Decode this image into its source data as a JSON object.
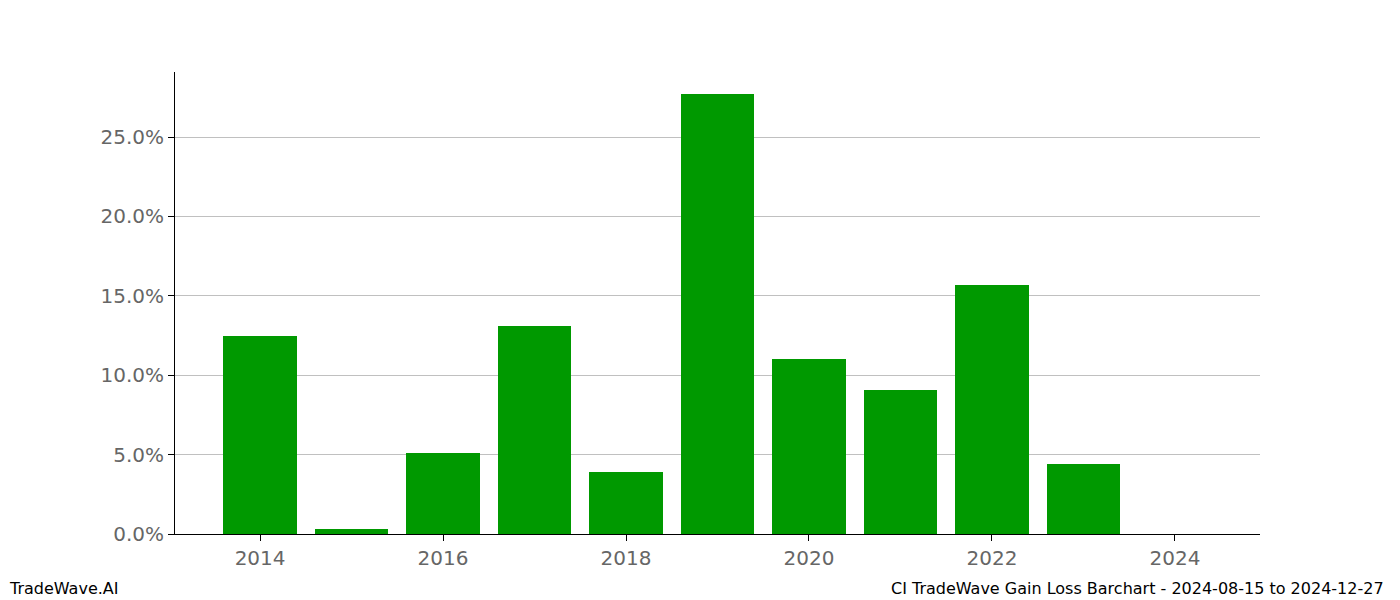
{
  "chart_data": {
    "type": "bar",
    "x": [
      2014,
      2015,
      2016,
      2017,
      2018,
      2019,
      2020,
      2021,
      2022,
      2023
    ],
    "values": [
      12.5,
      0.3,
      5.1,
      13.1,
      3.9,
      27.7,
      11.0,
      9.1,
      15.7,
      4.4
    ],
    "color": "#009900",
    "xlim": [
      2013.07,
      2024.93
    ],
    "xticks": [
      2014,
      2016,
      2018,
      2020,
      2022,
      2024
    ],
    "ylim": [
      0,
      29.1
    ],
    "yticks": [
      {
        "value": 0,
        "label": "0.0%"
      },
      {
        "value": 5,
        "label": "5.0%"
      },
      {
        "value": 10,
        "label": "10.0%"
      },
      {
        "value": 15,
        "label": "15.0%"
      },
      {
        "value": 20,
        "label": "20.0%"
      },
      {
        "value": 25,
        "label": "25.0%"
      }
    ],
    "grid": true,
    "annotations": [
      "TradeWave.AI",
      "CI TradeWave Gain Loss Barchart - 2024-08-15 to 2024-12-27"
    ]
  }
}
